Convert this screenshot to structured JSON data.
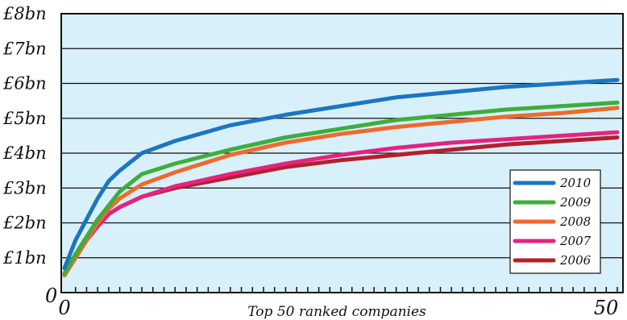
{
  "chart_data": {
    "type": "line",
    "xlabel": "Top 50 ranked companies",
    "ylabel": "",
    "xlim": [
      0,
      50
    ],
    "ylim": [
      0,
      8
    ],
    "y_ticks": [
      {
        "value": 0,
        "label": "0"
      },
      {
        "value": 1,
        "label": "£1bn"
      },
      {
        "value": 2,
        "label": "£2bn"
      },
      {
        "value": 3,
        "label": "£3bn"
      },
      {
        "value": 4,
        "label": "£4bn"
      },
      {
        "value": 5,
        "label": "£5bn"
      },
      {
        "value": 6,
        "label": "£6bn"
      },
      {
        "value": 7,
        "label": "£7bn"
      },
      {
        "value": 8,
        "label": "£8bn"
      }
    ],
    "x_tick_labels": [
      {
        "value": 0,
        "label": "0"
      },
      {
        "value": 50,
        "label": "50"
      }
    ],
    "minor_x_ticks": 50,
    "grid": "horizontal",
    "legend_position": "bottom-right",
    "series": [
      {
        "name": "2010",
        "color": "#1b76c0",
        "x": [
          0,
          1,
          2,
          3,
          4,
          5,
          7,
          10,
          15,
          20,
          25,
          30,
          35,
          40,
          45,
          50
        ],
        "y": [
          0.7,
          1.5,
          2.1,
          2.7,
          3.2,
          3.5,
          4.0,
          4.35,
          4.8,
          5.1,
          5.35,
          5.6,
          5.75,
          5.9,
          6.0,
          6.1
        ]
      },
      {
        "name": "2009",
        "color": "#3dae3d",
        "x": [
          0,
          1,
          2,
          3,
          4,
          5,
          7,
          10,
          15,
          20,
          25,
          30,
          35,
          40,
          45,
          50
        ],
        "y": [
          0.55,
          1.1,
          1.6,
          2.1,
          2.5,
          2.9,
          3.4,
          3.7,
          4.1,
          4.45,
          4.7,
          4.95,
          5.1,
          5.25,
          5.35,
          5.45
        ]
      },
      {
        "name": "2008",
        "color": "#ee6a2e",
        "x": [
          0,
          1,
          2,
          3,
          4,
          5,
          7,
          10,
          15,
          20,
          25,
          30,
          35,
          40,
          45,
          50
        ],
        "y": [
          0.5,
          1.0,
          1.5,
          2.0,
          2.4,
          2.7,
          3.1,
          3.45,
          3.95,
          4.3,
          4.55,
          4.75,
          4.9,
          5.05,
          5.15,
          5.3
        ]
      },
      {
        "name": "2007",
        "color": "#e42380",
        "x": [
          0,
          1,
          2,
          3,
          4,
          5,
          7,
          10,
          15,
          20,
          25,
          30,
          35,
          40,
          45,
          50
        ],
        "y": [
          0.5,
          1.0,
          1.5,
          1.9,
          2.25,
          2.45,
          2.75,
          3.05,
          3.4,
          3.7,
          3.95,
          4.15,
          4.3,
          4.4,
          4.5,
          4.6
        ]
      },
      {
        "name": "2006",
        "color": "#b3202c",
        "x": [
          0,
          1,
          2,
          3,
          4,
          5,
          7,
          10,
          15,
          20,
          25,
          30,
          35,
          40,
          45,
          50
        ],
        "y": [
          0.5,
          1.0,
          1.5,
          1.9,
          2.25,
          2.45,
          2.75,
          3.0,
          3.3,
          3.6,
          3.8,
          3.95,
          4.1,
          4.25,
          4.35,
          4.45
        ]
      }
    ]
  },
  "colors": {
    "plot_background": "#d8f0f9",
    "axis": "#111111",
    "grid": "#111111"
  }
}
